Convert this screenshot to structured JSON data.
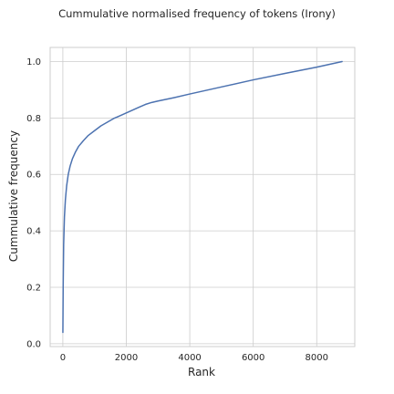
{
  "chart_data": {
    "type": "line",
    "title": "Cummulative normalised frequency of tokens (Irony)",
    "xlabel": "Rank",
    "ylabel": "Cummulative frequency",
    "xlim": [
      -400,
      9200
    ],
    "ylim": [
      -0.01,
      1.05
    ],
    "xticks": [
      0,
      2000,
      4000,
      6000,
      8000
    ],
    "yticks": [
      0.0,
      0.2,
      0.4,
      0.6,
      0.8,
      1.0
    ],
    "ytick_labels": [
      "0.0",
      "0.2",
      "0.4",
      "0.6",
      "0.8",
      "1.0"
    ],
    "xtick_labels": [
      "0",
      "2000",
      "4000",
      "6000",
      "8000"
    ],
    "grid": true,
    "legend": "none",
    "series": [
      {
        "color": "#4c72b0",
        "x": [
          1,
          10,
          25,
          50,
          80,
          120,
          170,
          230,
          300,
          400,
          500,
          650,
          800,
          1000,
          1200,
          1400,
          1600,
          1800,
          2000,
          2200,
          2400,
          2600,
          2800,
          3000,
          3500,
          4000,
          5000,
          6000,
          7000,
          8000,
          8800
        ],
        "y": [
          0.04,
          0.2,
          0.35,
          0.45,
          0.51,
          0.56,
          0.6,
          0.63,
          0.655,
          0.68,
          0.7,
          0.72,
          0.738,
          0.755,
          0.772,
          0.785,
          0.798,
          0.808,
          0.818,
          0.828,
          0.838,
          0.848,
          0.855,
          0.86,
          0.872,
          0.885,
          0.91,
          0.935,
          0.958,
          0.98,
          1.0
        ]
      }
    ]
  }
}
